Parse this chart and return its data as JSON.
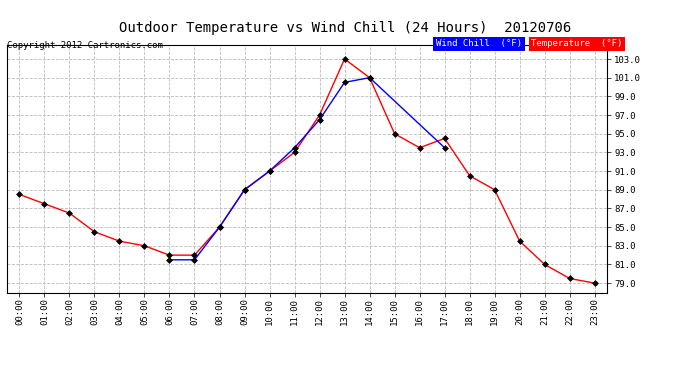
{
  "title": "Outdoor Temperature vs Wind Chill (24 Hours)  20120706",
  "copyright": "Copyright 2012 Cartronics.com",
  "x_labels": [
    "00:00",
    "01:00",
    "02:00",
    "03:00",
    "04:00",
    "05:00",
    "06:00",
    "07:00",
    "08:00",
    "09:00",
    "10:00",
    "11:00",
    "12:00",
    "13:00",
    "14:00",
    "15:00",
    "16:00",
    "17:00",
    "18:00",
    "19:00",
    "20:00",
    "21:00",
    "22:00",
    "23:00"
  ],
  "temperature": [
    88.5,
    87.5,
    86.5,
    84.5,
    83.5,
    83.0,
    82.0,
    82.0,
    85.0,
    89.0,
    91.0,
    93.0,
    97.0,
    103.0,
    101.0,
    95.0,
    93.5,
    94.5,
    90.5,
    89.0,
    83.5,
    81.0,
    79.5,
    79.0
  ],
  "wind_chill": [
    null,
    null,
    null,
    null,
    null,
    null,
    81.5,
    81.5,
    85.0,
    89.0,
    91.0,
    93.5,
    96.5,
    100.5,
    101.0,
    null,
    null,
    93.5,
    null,
    null,
    null,
    null,
    null,
    null
  ],
  "temp_color": "#ff0000",
  "wind_color": "#0000ff",
  "bg_color": "#ffffff",
  "plot_bg_color": "#ffffff",
  "grid_color": "#bbbbbb",
  "ylim_min": 78.0,
  "ylim_max": 104.5,
  "yticks": [
    79.0,
    81.0,
    83.0,
    85.0,
    87.0,
    89.0,
    91.0,
    93.0,
    95.0,
    97.0,
    99.0,
    101.0,
    103.0
  ],
  "legend_wind_bg": "#0000ff",
  "legend_temp_bg": "#ff0000",
  "legend_wind_label": "Wind Chill  (°F)",
  "legend_temp_label": "Temperature  (°F)"
}
